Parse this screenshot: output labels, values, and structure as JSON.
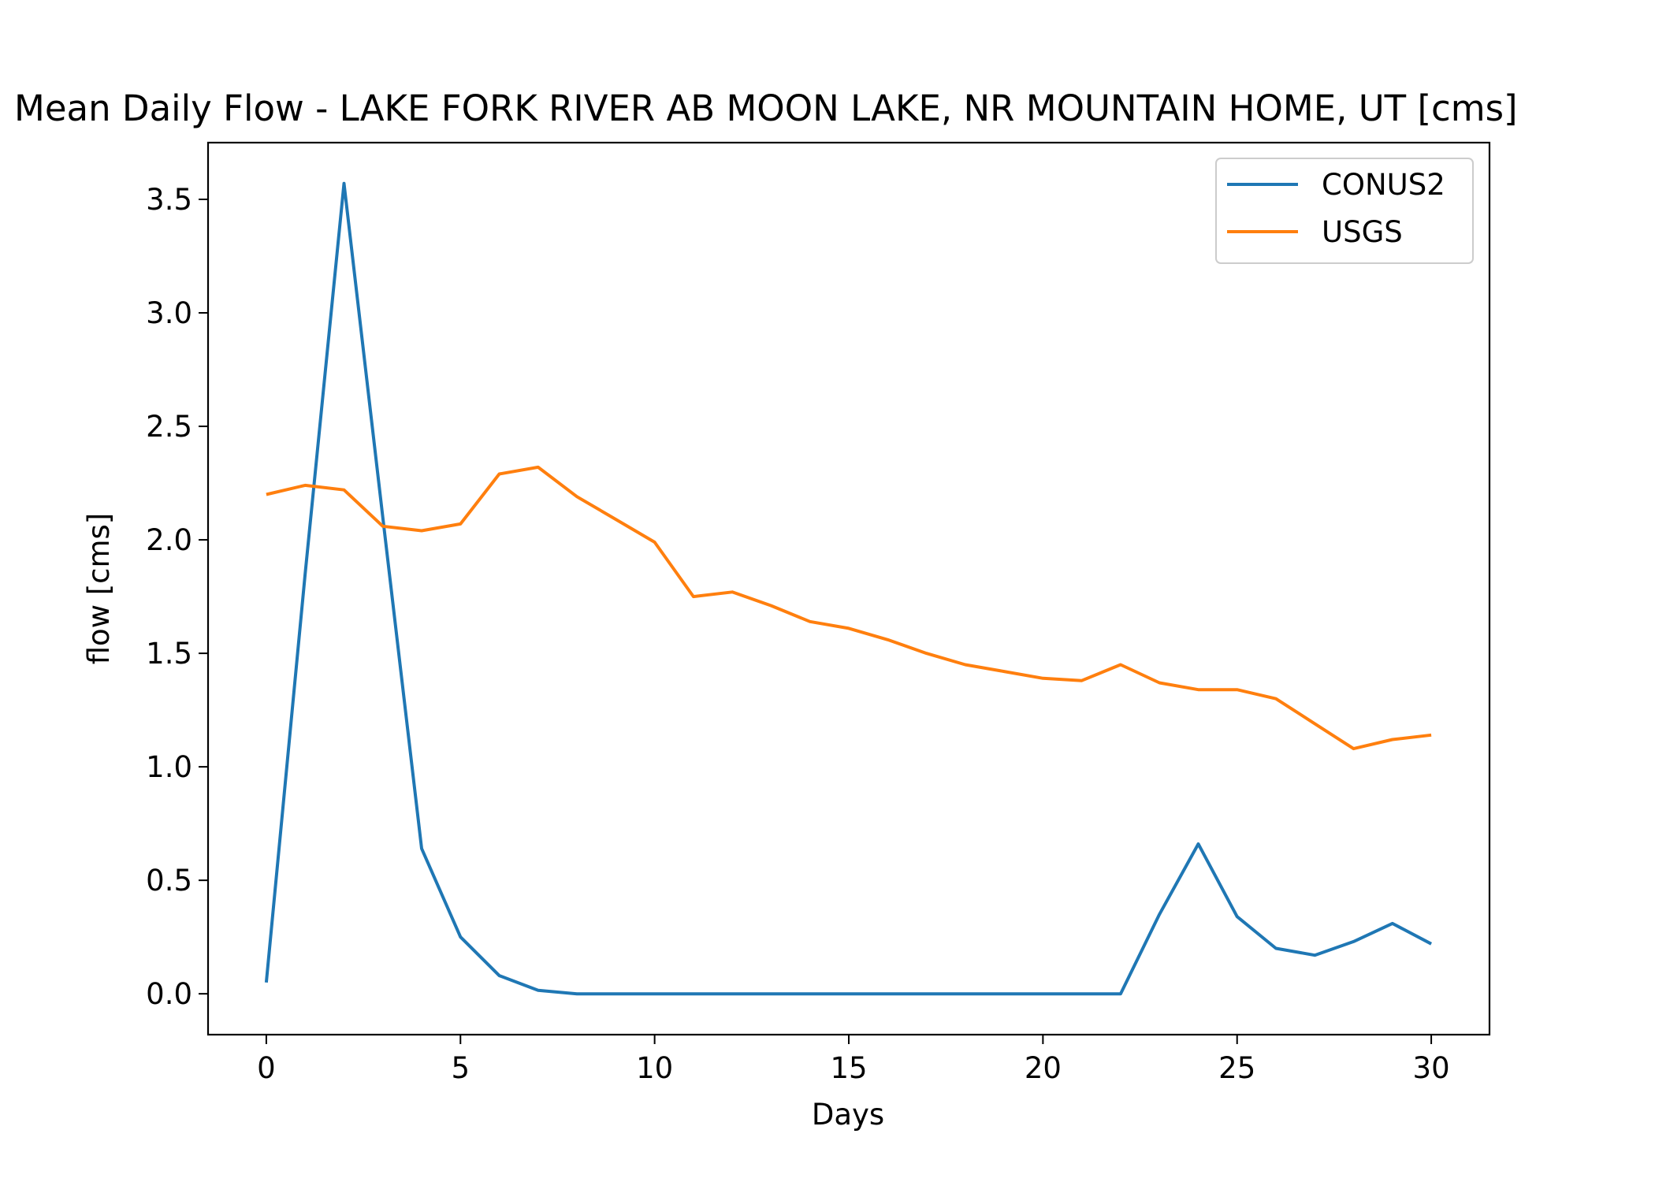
{
  "chart_data": {
    "type": "line",
    "title": "Mean Daily Flow - LAKE FORK RIVER AB MOON LAKE, NR MOUNTAIN HOME, UT [cms]",
    "xlabel": "Days",
    "ylabel": "flow [cms]",
    "xlim": [
      -1.5,
      31.5
    ],
    "ylim": [
      -0.18,
      3.75
    ],
    "xticks": [
      0,
      5,
      10,
      15,
      20,
      25,
      30
    ],
    "xtick_labels": [
      "0",
      "5",
      "10",
      "15",
      "20",
      "25",
      "30"
    ],
    "yticks": [
      0.0,
      0.5,
      1.0,
      1.5,
      2.0,
      2.5,
      3.0,
      3.5
    ],
    "ytick_labels": [
      "0.0",
      "0.5",
      "1.0",
      "1.5",
      "2.0",
      "2.5",
      "3.0",
      "3.5"
    ],
    "grid": false,
    "legend_position": "top-right",
    "x": [
      0,
      1,
      2,
      3,
      4,
      5,
      6,
      7,
      8,
      9,
      10,
      11,
      12,
      13,
      14,
      15,
      16,
      17,
      18,
      19,
      20,
      21,
      22,
      23,
      24,
      25,
      26,
      27,
      28,
      29,
      30
    ],
    "series": [
      {
        "name": "CONUS2",
        "color": "#1f77b4",
        "values": [
          0.05,
          1.85,
          3.57,
          2.1,
          0.64,
          0.25,
          0.08,
          0.015,
          0.0,
          0.0,
          0.0,
          0.0,
          0.0,
          0.0,
          0.0,
          0.0,
          0.0,
          0.0,
          0.0,
          0.0,
          0.0,
          0.0,
          0.0,
          0.35,
          0.66,
          0.34,
          0.2,
          0.17,
          0.23,
          0.31,
          0.22
        ]
      },
      {
        "name": "USGS",
        "color": "#ff7f0e",
        "values": [
          2.2,
          2.24,
          2.22,
          2.06,
          2.04,
          2.07,
          2.29,
          2.32,
          2.19,
          2.09,
          1.99,
          1.75,
          1.77,
          1.71,
          1.64,
          1.61,
          1.56,
          1.5,
          1.45,
          1.42,
          1.39,
          1.38,
          1.45,
          1.37,
          1.34,
          1.34,
          1.3,
          1.19,
          1.08,
          1.12,
          1.14
        ]
      }
    ]
  }
}
